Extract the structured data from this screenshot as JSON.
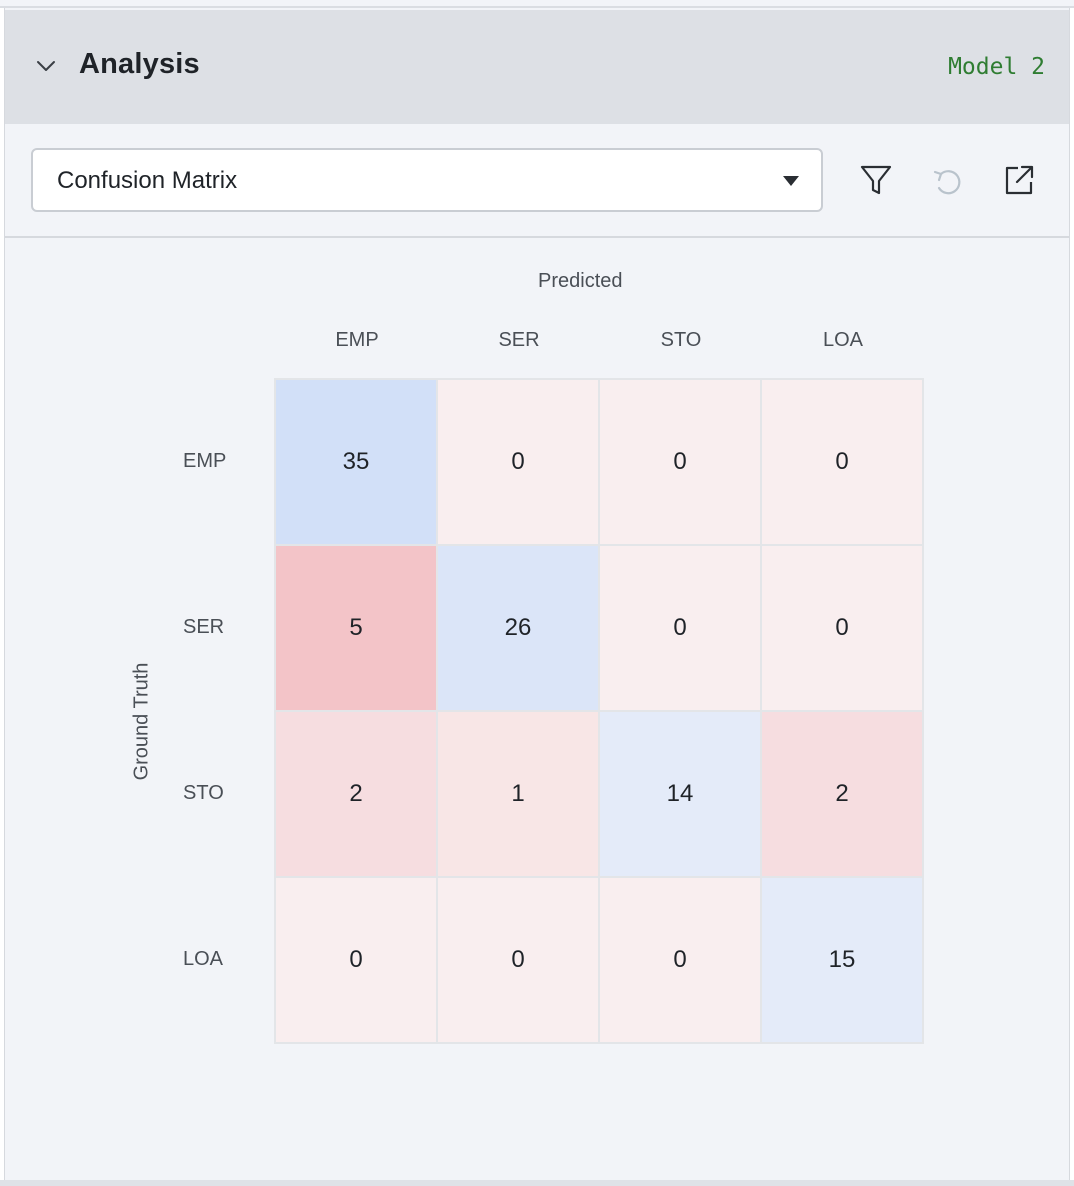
{
  "header": {
    "title": "Analysis",
    "model_label": "Model 2"
  },
  "toolbar": {
    "view_select": {
      "value": "Confusion Matrix"
    },
    "icons": [
      "filter-icon",
      "undo-icon",
      "open-external-icon"
    ]
  },
  "colors": {
    "correct_high": "#d2e0f8",
    "correct_mid": "#dbe5f8",
    "correct_low": "#e4ebf9",
    "error_high": "#f3c4c8",
    "error_mid": "#f6dde0",
    "error_low": "#f8e6e6",
    "zero": "#f9eeef",
    "model_green": "#2f7d32"
  },
  "chart_data": {
    "type": "heatmap",
    "title": "",
    "xlabel": "Predicted",
    "ylabel": "Ground Truth",
    "x_categories": [
      "EMP",
      "SER",
      "STO",
      "LOA"
    ],
    "y_categories": [
      "EMP",
      "SER",
      "STO",
      "LOA"
    ],
    "values": [
      [
        35,
        0,
        0,
        0
      ],
      [
        5,
        26,
        0,
        0
      ],
      [
        2,
        1,
        14,
        2
      ],
      [
        0,
        0,
        0,
        15
      ]
    ]
  }
}
